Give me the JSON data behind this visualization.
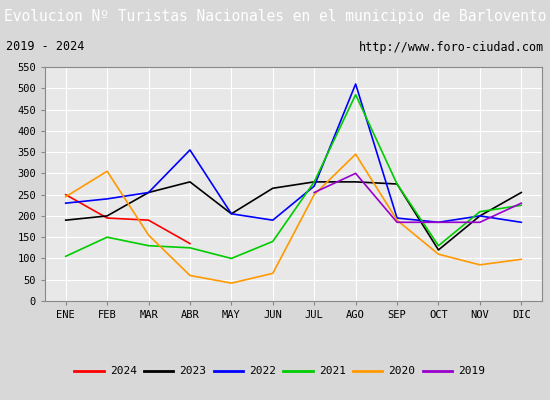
{
  "title": "Evolucion Nº Turistas Nacionales en el municipio de Barlovento",
  "subtitle_left": "2019 - 2024",
  "subtitle_right": "http://www.foro-ciudad.com",
  "months": [
    "ENE",
    "FEB",
    "MAR",
    "ABR",
    "MAY",
    "JUN",
    "JUL",
    "AGO",
    "SEP",
    "OCT",
    "NOV",
    "DIC"
  ],
  "ylim": [
    0,
    550
  ],
  "yticks": [
    0,
    50,
    100,
    150,
    200,
    250,
    300,
    350,
    400,
    450,
    500,
    550
  ],
  "series": {
    "2024": {
      "color": "#ff0000",
      "data": [
        250,
        195,
        190,
        135,
        null,
        null,
        null,
        null,
        null,
        null,
        null,
        null
      ]
    },
    "2023": {
      "color": "#000000",
      "data": [
        190,
        200,
        255,
        280,
        205,
        265,
        280,
        280,
        275,
        120,
        200,
        255
      ]
    },
    "2022": {
      "color": "#0000ff",
      "data": [
        230,
        240,
        255,
        355,
        205,
        190,
        270,
        510,
        195,
        185,
        200,
        185
      ]
    },
    "2021": {
      "color": "#00cc00",
      "data": [
        105,
        150,
        130,
        125,
        100,
        140,
        280,
        485,
        275,
        130,
        210,
        225
      ]
    },
    "2020": {
      "color": "#ff9900",
      "data": [
        245,
        305,
        155,
        60,
        42,
        65,
        250,
        345,
        190,
        110,
        85,
        98
      ]
    },
    "2019": {
      "color": "#9900cc",
      "data": [
        null,
        null,
        null,
        null,
        null,
        null,
        255,
        300,
        185,
        185,
        185,
        230
      ]
    }
  },
  "title_bg_color": "#4472c4",
  "title_font_color": "#ffffff",
  "plot_bg_color": "#e8e8e8",
  "chart_bg_color": "#e8e8e8",
  "header_bg_color": "#e8e8e8",
  "outer_bg_color": "#d8d8d8",
  "grid_color": "#ffffff",
  "title_fontsize": 10.5,
  "subtitle_fontsize": 8.5,
  "axis_fontsize": 7.5,
  "legend_fontsize": 8
}
